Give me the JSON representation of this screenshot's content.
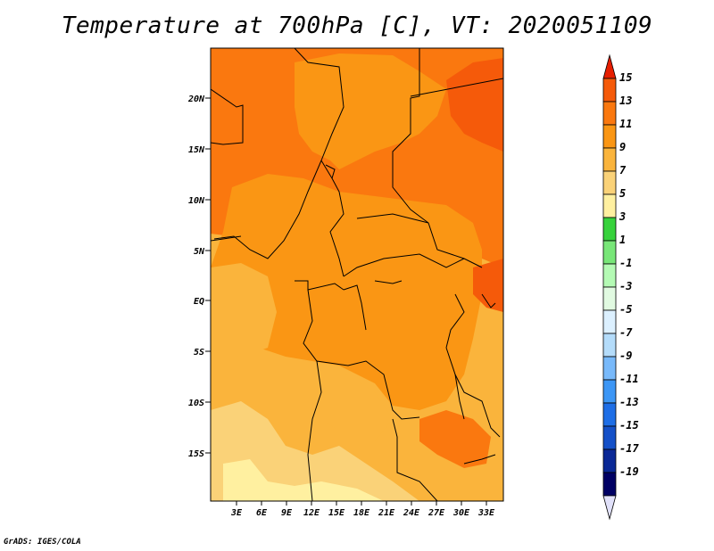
{
  "title": "Temperature at 700hPa [C], VT: 2020051109",
  "credit": "GrADS: IGES/COLA",
  "map": {
    "lat_labels": [
      "20N",
      "15N",
      "10N",
      "5N",
      "EQ",
      "5S",
      "10S",
      "15S"
    ],
    "lon_labels": [
      "3E",
      "6E",
      "9E",
      "12E",
      "15E",
      "18E",
      "21E",
      "24E",
      "27E",
      "30E",
      "33E"
    ],
    "colors": {
      "t13": "#f55a0a",
      "t11": "#fa780f",
      "t9": "#fa9614",
      "t7": "#fab43c",
      "t5": "#fad278",
      "t3": "#fff0a0",
      "border": "#000000"
    }
  },
  "colorbar": {
    "levels": [
      "15",
      "13",
      "11",
      "9",
      "7",
      "5",
      "3",
      "1",
      "-1",
      "-3",
      "-5",
      "-7",
      "-9",
      "-11",
      "-13",
      "-15",
      "-17",
      "-19"
    ],
    "colors": [
      "#e61e00",
      "#f55a0a",
      "#fa780f",
      "#fa9614",
      "#fab43c",
      "#fad278",
      "#fff0a0",
      "#37d23c",
      "#78e678",
      "#b4fab4",
      "#e1fae1",
      "#dcf0ff",
      "#b4dcfa",
      "#78b9fa",
      "#3c96f5",
      "#1e6ee6",
      "#1450c8",
      "#0a2896",
      "#000064",
      "#e1e1fa"
    ]
  }
}
